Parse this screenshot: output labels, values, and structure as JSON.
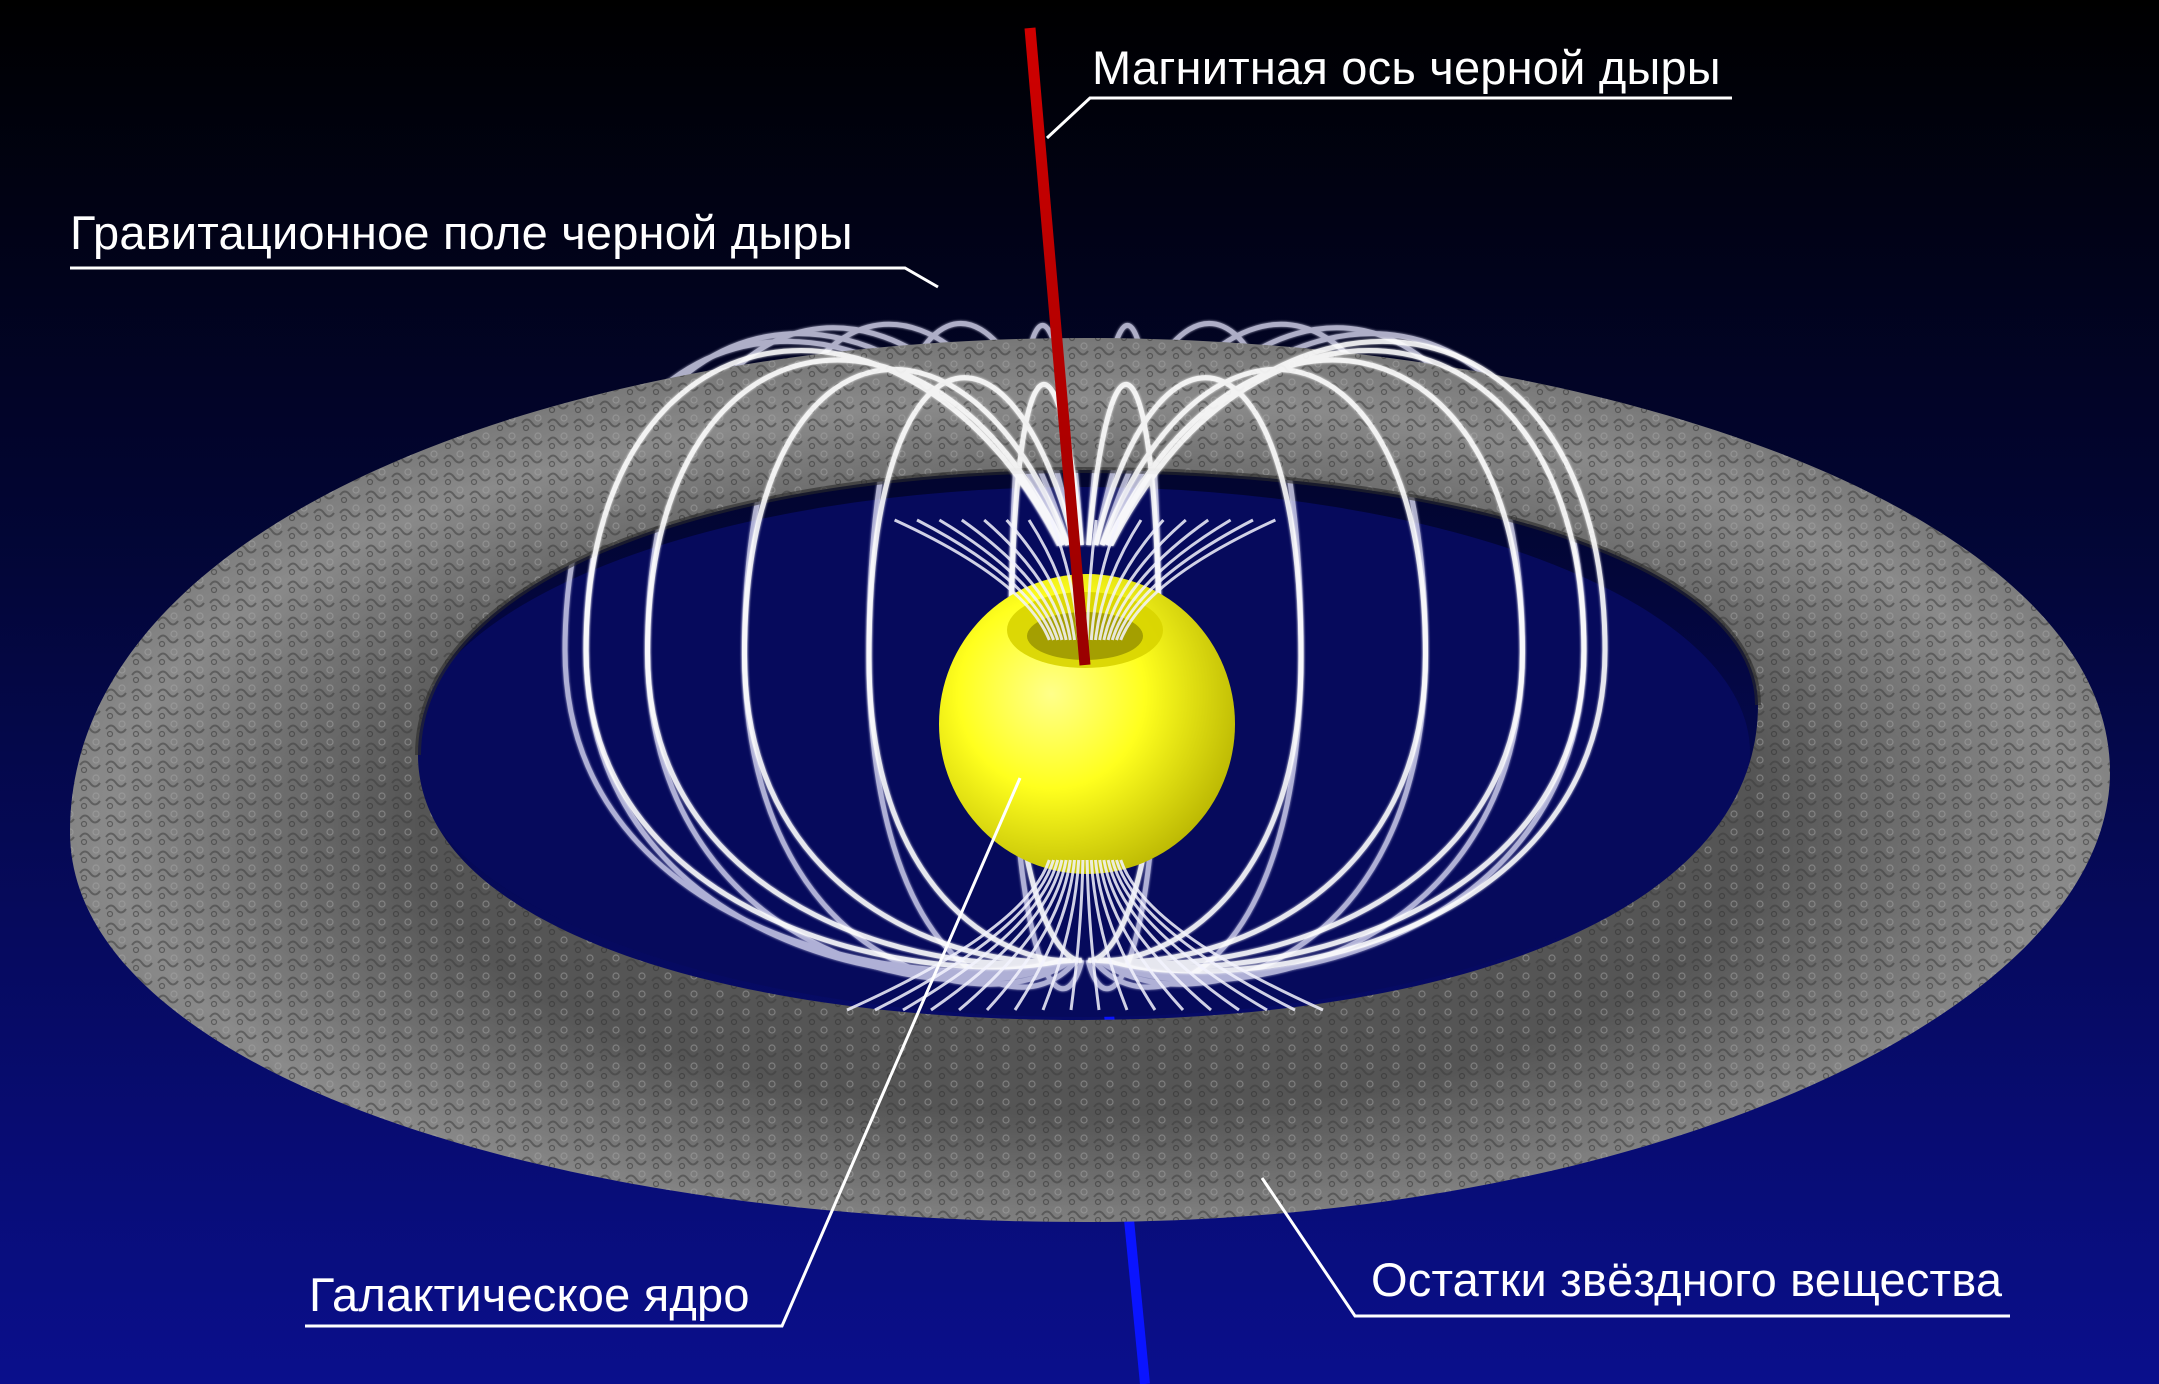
{
  "labels": {
    "magnetic_axis": "Магнитная ось черной дыры",
    "gravitational_field": "Гравитационное поле черной дыры",
    "galactic_core": "Галактическое ядро",
    "stellar_remnants": "Остатки звёздного вещества"
  },
  "colors": {
    "background_top": "#000000",
    "background_bottom": "#0a0f8c",
    "inner_disk": "#060a5c",
    "ring": "#7a7a7a",
    "field_lines": "#ffffff",
    "core": "#ffff1e",
    "axis_top": "#c80000",
    "axis_bottom": "#0a14ff",
    "leader_lines": "#ffffff"
  }
}
